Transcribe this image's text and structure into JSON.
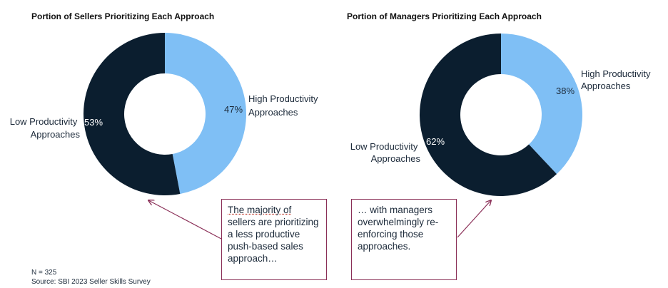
{
  "colors": {
    "high": "#7fbff5",
    "low": "#0b1e2f",
    "arrow": "#8a2f57"
  },
  "chart_data": [
    {
      "type": "pie",
      "variant": "donut",
      "title": "Portion of Sellers Prioritizing Each Approach",
      "slices": [
        {
          "name": "High Productivity Approaches",
          "label_lines": [
            "High Productivity",
            "Approaches"
          ],
          "value": 47,
          "pct_label": "47%"
        },
        {
          "name": "Low Productivity Approaches",
          "label_lines": [
            "Low Productivity",
            "Approaches"
          ],
          "value": 53,
          "pct_label": "53%"
        }
      ]
    },
    {
      "type": "pie",
      "variant": "donut",
      "title": "Portion of Managers Prioritizing Each Approach",
      "slices": [
        {
          "name": "High Productivity Approaches",
          "label_lines": [
            "High Productivity",
            "Approaches"
          ],
          "value": 38,
          "pct_label": "38%"
        },
        {
          "name": "Low Productivity Approaches",
          "label_lines": [
            "Low Productivity",
            "Approaches"
          ],
          "value": 62,
          "pct_label": "62%"
        }
      ]
    }
  ],
  "callouts": {
    "left": {
      "first": "The majority of",
      "rest": "sellers are prioritizing a less productive push-based sales approach…"
    },
    "right": {
      "text": "… with managers overwhelmingly re-enforcing those approaches."
    }
  },
  "footnote": {
    "n": "N = 325",
    "source": "Source: SBI 2023 Seller Skills Survey"
  }
}
